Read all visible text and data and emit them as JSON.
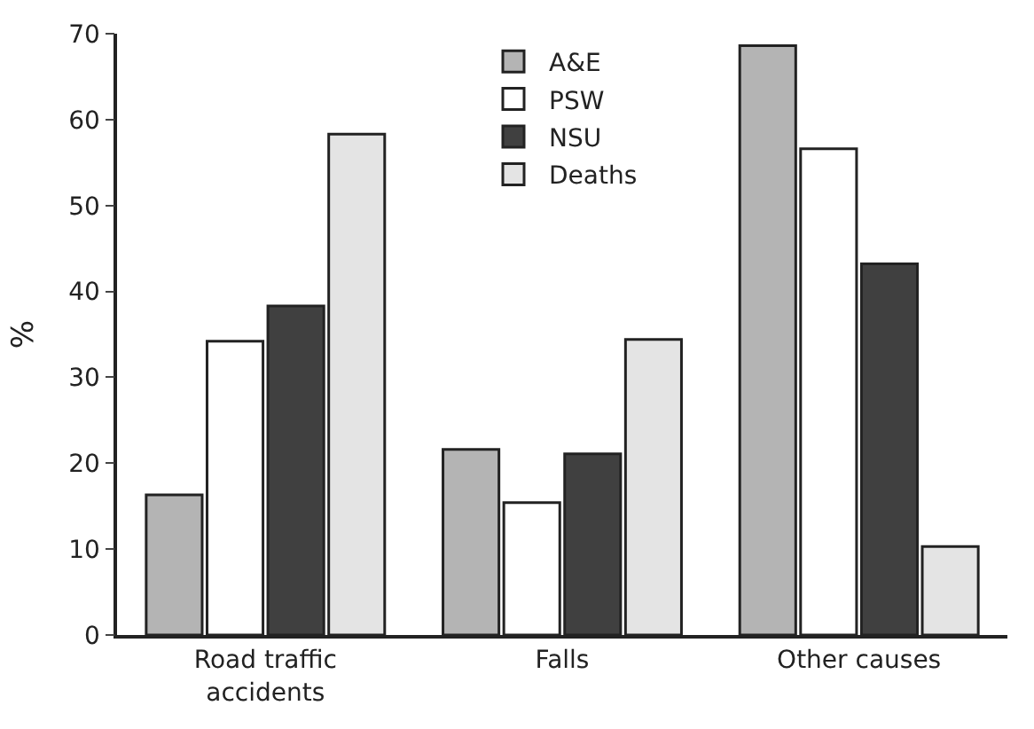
{
  "chart_data": {
    "type": "bar",
    "ylabel": "%",
    "categories": [
      "Road traffic accidents",
      "Falls",
      "Other causes"
    ],
    "series": [
      {
        "name": "A&E",
        "color": "#b4b4b4",
        "values": [
          16.3,
          21.6,
          68.6
        ]
      },
      {
        "name": "PSW",
        "color": "#ffffff",
        "values": [
          34.2,
          15.4,
          56.6
        ]
      },
      {
        "name": "NSU",
        "color": "#404040",
        "values": [
          38.3,
          21.1,
          43.2
        ]
      },
      {
        "name": "Deaths",
        "color": "#e4e4e4",
        "values": [
          58.3,
          34.4,
          10.3
        ]
      }
    ],
    "ylim": [
      0,
      70
    ],
    "yticks": [
      0,
      10,
      20,
      30,
      40,
      50,
      60,
      70
    ],
    "legend": "top"
  }
}
